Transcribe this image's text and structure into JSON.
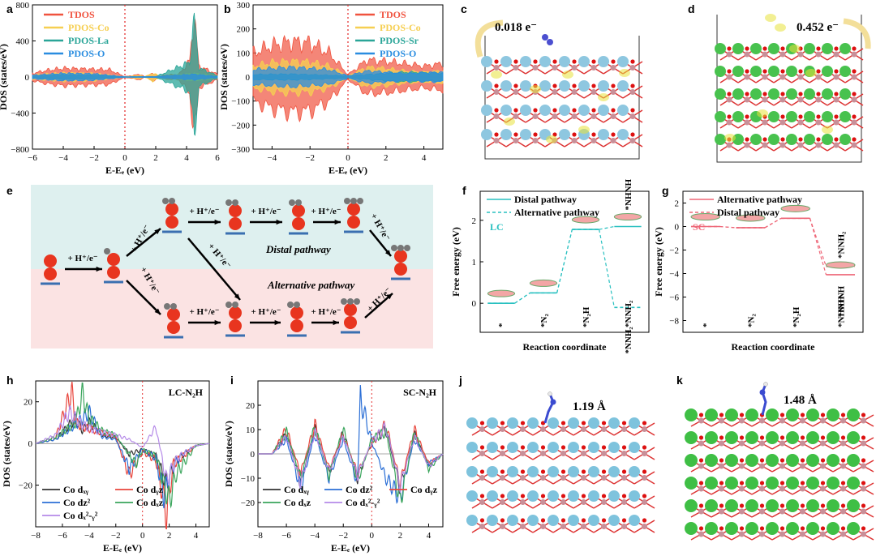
{
  "panels": {
    "a": {
      "label": "a"
    },
    "b": {
      "label": "b"
    },
    "c": {
      "label": "c",
      "charge": "0.018 e⁻"
    },
    "d": {
      "label": "d",
      "charge": "0.452 e⁻"
    },
    "e": {
      "label": "e",
      "distal": "Distal pathway",
      "alternative": "Alternative pathway",
      "step": "+ H⁺/e⁻"
    },
    "f": {
      "label": "f"
    },
    "g": {
      "label": "g"
    },
    "h": {
      "label": "h"
    },
    "i": {
      "label": "i"
    },
    "j": {
      "label": "j",
      "bond": "1.19 Å"
    },
    "k": {
      "label": "k",
      "bond": "1.48 Å"
    }
  },
  "chart_data": [
    {
      "id": "a",
      "type": "area",
      "xlabel": "E-Eₑ (eV)",
      "ylabel": "DOS (states/eV)",
      "xlim": [
        -6,
        6
      ],
      "ylim": [
        -800,
        800
      ],
      "xticks": [
        -6,
        -4,
        -2,
        0,
        2,
        4,
        6
      ],
      "yticks": [
        -800,
        -400,
        0,
        400,
        800
      ],
      "legend": [
        "TDOS",
        "PDOS-Co",
        "PDOS-La",
        "PDOS-O"
      ],
      "colors": [
        "#f0533f",
        "#f6cf52",
        "#2aa598",
        "#2a8de0"
      ],
      "legend_position": "top-left",
      "series": [
        {
          "name": "TDOS",
          "x": [
            -6,
            -5,
            -4,
            -3,
            -2,
            -1,
            0,
            1,
            1.8,
            2.5,
            3.5,
            4.2,
            4.5,
            4.8,
            6
          ],
          "values": [
            40,
            75,
            95,
            90,
            85,
            80,
            5,
            30,
            -45,
            20,
            30,
            180,
            700,
            120,
            30
          ]
        },
        {
          "name": "PDOS-Co",
          "x": [
            -6,
            -4,
            -2,
            0,
            1,
            1.8,
            2.5,
            4.5,
            6
          ],
          "values": [
            25,
            45,
            40,
            3,
            20,
            -45,
            10,
            40,
            10
          ]
        },
        {
          "name": "PDOS-La",
          "x": [
            -6,
            -4,
            -2,
            0,
            2,
            4.2,
            4.5,
            4.8,
            6
          ],
          "values": [
            10,
            25,
            20,
            3,
            5,
            160,
            650,
            100,
            15
          ]
        },
        {
          "name": "PDOS-O",
          "x": [
            -6,
            -4,
            -2,
            0,
            2,
            4.5,
            6
          ],
          "values": [
            20,
            40,
            35,
            3,
            5,
            30,
            5
          ]
        }
      ]
    },
    {
      "id": "b",
      "type": "area",
      "xlabel": "E-Eₑ (eV)",
      "ylabel": "DOS (states/eV)",
      "xlim": [
        -5,
        5
      ],
      "ylim": [
        -300,
        300
      ],
      "xticks": [
        -4,
        -2,
        0,
        2,
        4
      ],
      "yticks": [
        -300,
        -200,
        -100,
        0,
        100,
        200,
        300
      ],
      "legend": [
        "TDOS",
        "PDOS-Co",
        "PDOS-Sr",
        "PDOS-O"
      ],
      "colors": [
        "#f0533f",
        "#f6cf52",
        "#2aa598",
        "#2a8de0"
      ],
      "legend_position": "top-right",
      "series": [
        {
          "name": "TDOS",
          "x": [
            -5,
            -4,
            -3,
            -2,
            -1,
            0,
            1,
            2,
            3,
            4,
            5
          ],
          "values": [
            100,
            130,
            145,
            140,
            100,
            10,
            70,
            65,
            55,
            45,
            55
          ]
        },
        {
          "name": "PDOS-Co",
          "x": [
            -5,
            -4,
            -3,
            -2,
            -1,
            0,
            1,
            2,
            3,
            4,
            5
          ],
          "values": [
            45,
            60,
            65,
            62,
            45,
            5,
            40,
            35,
            25,
            20,
            25
          ]
        },
        {
          "name": "PDOS-Sr",
          "x": [
            -5,
            -3,
            0,
            3,
            5
          ],
          "values": [
            10,
            12,
            5,
            20,
            15
          ]
        },
        {
          "name": "PDOS-O",
          "x": [
            -5,
            -3,
            -1,
            0,
            1,
            3,
            5
          ],
          "values": [
            30,
            40,
            30,
            5,
            25,
            15,
            20
          ]
        }
      ]
    },
    {
      "id": "f",
      "type": "line",
      "annotation": "LC",
      "xlabel": "Reaction coordinate",
      "ylabel": "Free energy (eV)",
      "ylim": [
        -0.7,
        2.7
      ],
      "yticks": [
        0,
        1,
        2
      ],
      "categories": [
        "*",
        "*N₂",
        "*N₂H",
        "*NNH₂"
      ],
      "legend": [
        "Distal pathway",
        "Alternative pathway"
      ],
      "colors": [
        "#29c0c0",
        "#29c0c0"
      ],
      "series": [
        {
          "name": "Distal pathway",
          "values": [
            0.0,
            0.25,
            1.78,
            1.85
          ]
        },
        {
          "name": "Alternative pathway",
          "values": [
            0.0,
            0.25,
            1.78,
            -0.1
          ]
        }
      ],
      "end_labels": [
        "*NHNH",
        "*NNH₂"
      ]
    },
    {
      "id": "g",
      "type": "line",
      "annotation": "SC",
      "xlabel": "Reaction coordinate",
      "ylabel": "Free energy (eV)",
      "ylim": [
        -9,
        3
      ],
      "yticks": [
        2,
        0,
        -2,
        -4,
        -6,
        -8
      ],
      "categories": [
        "*",
        "*N₂",
        "*N₂H",
        "*NHNH"
      ],
      "legend": [
        "Alternative pathway",
        "Distal pathway"
      ],
      "colors": [
        "#ee6677",
        "#ee6677"
      ],
      "series": [
        {
          "name": "Alternative pathway",
          "values": [
            0.0,
            -0.1,
            0.7,
            -4.1
          ]
        },
        {
          "name": "Distal pathway",
          "values": [
            0.0,
            -0.1,
            0.7,
            -3.4
          ]
        }
      ],
      "end_labels": [
        "*NNH₂",
        "*NHNH"
      ]
    },
    {
      "id": "h",
      "type": "line",
      "annotation": "LC-N₂H",
      "xlabel": "E-Eₑ (eV)",
      "ylabel": "DOS (states/eV)",
      "xlim": [
        -8,
        5
      ],
      "ylim": [
        -40,
        30
      ],
      "xticks": [
        -8,
        -6,
        -4,
        -2,
        0,
        2,
        4
      ],
      "yticks": [
        20,
        0,
        -20
      ],
      "legend": [
        "Co dₓᵧ",
        "Co dᵧz",
        "Co dz²",
        "Co dₓz",
        "Co dₓ²-ᵧ²"
      ],
      "colors": [
        "#333333",
        "#e8453c",
        "#2b6fd6",
        "#3aa55c",
        "#b58ae8"
      ],
      "series": [
        {
          "name": "dxy",
          "x": [
            -8,
            -6.5,
            -5,
            -4.5,
            -4,
            -3,
            -2,
            -1,
            0,
            1,
            1.8,
            2.5,
            4,
            5
          ],
          "values": [
            0,
            2,
            12,
            6,
            10,
            4,
            3,
            -5,
            -3,
            -6,
            -20,
            -8,
            -1,
            0
          ]
        },
        {
          "name": "dyz",
          "x": [
            -8,
            -6.5,
            -5.3,
            -5,
            -4.5,
            -3,
            -2,
            -1,
            0,
            1,
            1.8,
            2.3,
            4,
            5
          ],
          "values": [
            0,
            3,
            25,
            10,
            8,
            5,
            3,
            -15,
            -4,
            -8,
            -34,
            -10,
            -1,
            0
          ]
        },
        {
          "name": "dz2",
          "x": [
            -8,
            -6.5,
            -5,
            -4,
            -3,
            -2,
            -1,
            0,
            1,
            1.6,
            2.2,
            3,
            4,
            5
          ],
          "values": [
            0,
            2,
            9,
            15,
            3,
            2,
            -12,
            -3,
            -7,
            -25,
            -12,
            -5,
            -1,
            0
          ]
        },
        {
          "name": "dxz",
          "x": [
            -8,
            -6.5,
            -5,
            -4.5,
            -4,
            -3,
            -2,
            -0.5,
            0,
            1,
            2,
            2.5,
            4,
            5
          ],
          "values": [
            0,
            3,
            10,
            24,
            12,
            6,
            4,
            -10,
            -3,
            -6,
            -28,
            -15,
            -1,
            0
          ]
        },
        {
          "name": "dx2-y2",
          "x": [
            -8,
            -6.5,
            -5.5,
            -4.5,
            -3.5,
            -2,
            -1,
            0,
            1,
            1.8,
            2.5,
            3,
            4,
            5
          ],
          "values": [
            0,
            4,
            15,
            9,
            6,
            4,
            2,
            -2,
            8,
            -18,
            -8,
            -5,
            -1,
            0
          ]
        }
      ]
    },
    {
      "id": "i",
      "type": "line",
      "annotation": "SC-N₂H",
      "xlabel": "E-Eₑ (eV)",
      "ylabel": "DOS (states/eV)",
      "xlim": [
        -8,
        5
      ],
      "ylim": [
        -30,
        30
      ],
      "xticks": [
        -8,
        -6,
        -4,
        -2,
        0,
        2,
        4
      ],
      "yticks": [
        20,
        10,
        0,
        -10,
        -20
      ],
      "legend": [
        "Co dₓᵧ",
        "Co dz²",
        "Co dᵧz",
        "Co dₓz",
        "Co dₓ²-ᵧ²"
      ],
      "colors": [
        "#333333",
        "#2b6fd6",
        "#e8453c",
        "#3aa55c",
        "#b58ae8"
      ],
      "series": [
        {
          "name": "dxy",
          "x": [
            -7,
            -6,
            -5,
            -4,
            -3,
            -2,
            -1,
            0,
            1,
            2,
            3,
            4,
            5
          ],
          "values": [
            0,
            8,
            -12,
            10,
            -8,
            9,
            -10,
            5,
            10,
            -14,
            8,
            -5,
            0
          ]
        },
        {
          "name": "dz2",
          "x": [
            -7,
            -6,
            -5,
            -4,
            -3,
            -2,
            -1,
            -0.8,
            0,
            1,
            2,
            3,
            4,
            5
          ],
          "values": [
            0,
            6,
            -14,
            8,
            -10,
            6,
            -12,
            23,
            5,
            -10,
            -18,
            6,
            -4,
            0
          ]
        },
        {
          "name": "dyz",
          "x": [
            -7,
            -6,
            -5,
            -4,
            -3,
            -2,
            -1,
            0,
            1,
            2,
            3,
            4,
            5
          ],
          "values": [
            0,
            10,
            -8,
            12,
            -6,
            8,
            -8,
            4,
            12,
            -12,
            10,
            -4,
            0
          ]
        },
        {
          "name": "dxz",
          "x": [
            -7,
            -6,
            -5,
            -4,
            -3,
            -2,
            -1,
            0,
            1,
            2,
            3,
            4,
            5
          ],
          "values": [
            0,
            9,
            -10,
            11,
            -9,
            10,
            -11,
            6,
            9,
            -20,
            9,
            -6,
            0
          ]
        },
        {
          "name": "dx2-y2",
          "x": [
            -7,
            -6,
            -5,
            -4,
            -3,
            -2,
            -1,
            0,
            1,
            2,
            3,
            4,
            5
          ],
          "values": [
            0,
            7,
            -12,
            9,
            -7,
            7,
            -9,
            5,
            11,
            -13,
            7,
            -5,
            0
          ]
        }
      ]
    }
  ]
}
